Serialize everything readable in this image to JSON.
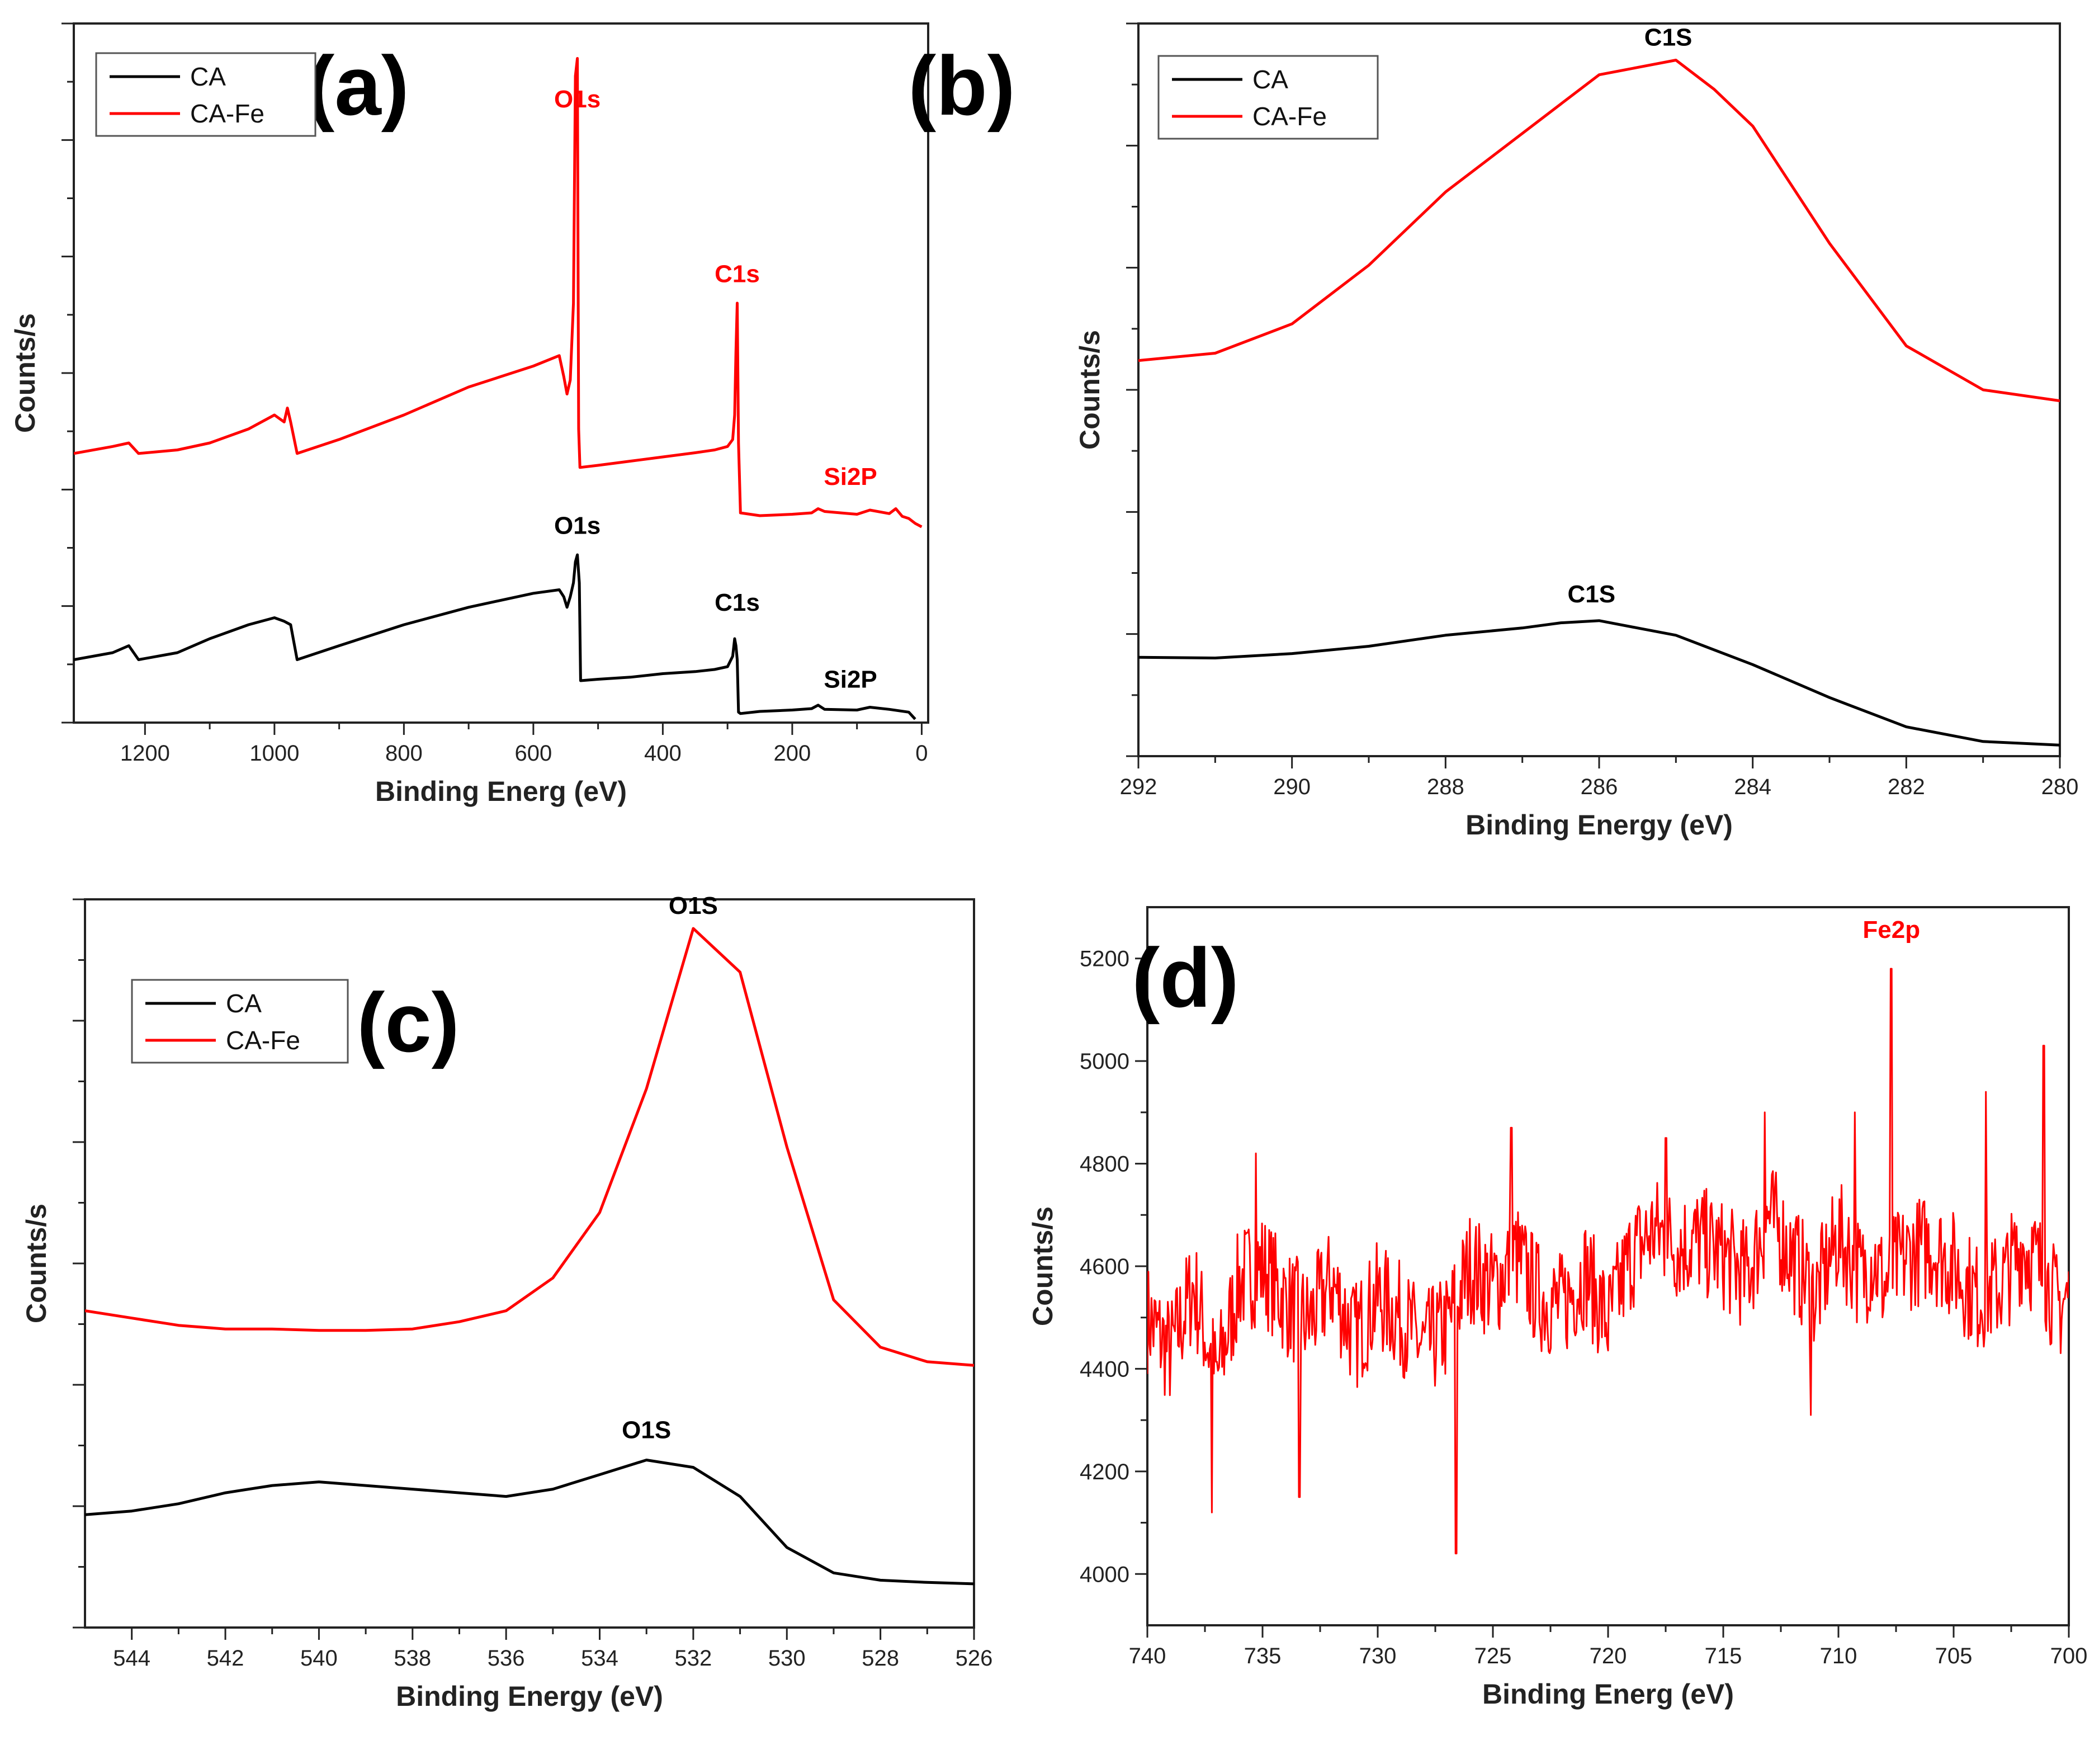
{
  "chart_data": [
    {
      "panel": "(a)",
      "type": "line",
      "xlabel": "Binding Energ (eV)",
      "ylabel": "Counts/s",
      "xlim": [
        1310,
        -10
      ],
      "ylim": [
        0,
        100
      ],
      "xticks": [
        1200,
        1000,
        800,
        600,
        400,
        200,
        0
      ],
      "yticks_labeled": false,
      "legend": "top-left",
      "series": [
        {
          "name": "CA",
          "color": "#000000",
          "x": [
            1310,
            1250,
            1225,
            1210,
            1150,
            1100,
            1040,
            1000,
            985,
            975,
            965,
            900,
            800,
            700,
            600,
            560,
            553,
            548,
            543,
            538,
            535,
            532,
            529,
            527,
            500,
            450,
            400,
            350,
            320,
            300,
            292,
            289,
            287,
            285,
            283,
            280,
            250,
            200,
            170,
            160,
            150,
            100,
            80,
            50,
            20,
            10
          ],
          "y": [
            9,
            10,
            11,
            9,
            10,
            12,
            14,
            15,
            14.5,
            14,
            9,
            11,
            14,
            16.5,
            18.5,
            19,
            18,
            16.5,
            18,
            20,
            23,
            24,
            20,
            6,
            6.2,
            6.5,
            7,
            7.3,
            7.6,
            8,
            9.5,
            12,
            11,
            9,
            1.5,
            1.3,
            1.6,
            1.8,
            2,
            2.5,
            1.9,
            1.8,
            2.2,
            1.9,
            1.5,
            0.5
          ]
        },
        {
          "name": "CA-Fe",
          "color": "#ff0000",
          "x": [
            1310,
            1250,
            1225,
            1210,
            1150,
            1100,
            1040,
            1000,
            985,
            980,
            975,
            965,
            900,
            800,
            700,
            600,
            560,
            553,
            548,
            543,
            538,
            535,
            532,
            530,
            528,
            500,
            450,
            400,
            350,
            320,
            300,
            292,
            289,
            287,
            285,
            283,
            280,
            250,
            200,
            170,
            160,
            150,
            100,
            80,
            50,
            40,
            30,
            20,
            10,
            0
          ],
          "y": [
            38.5,
            39.5,
            40,
            38.5,
            39,
            40,
            42,
            44,
            43,
            45,
            43,
            38.5,
            40.5,
            44,
            48,
            51,
            52.5,
            49.5,
            47,
            49,
            60,
            92.5,
            95,
            42,
            36.5,
            36.8,
            37.4,
            38,
            38.6,
            39,
            39.5,
            40.5,
            44,
            53,
            60,
            40,
            30,
            29.6,
            29.8,
            30,
            30.6,
            30.2,
            29.8,
            30.4,
            29.9,
            30.6,
            29.5,
            29.2,
            28.5,
            28
          ]
        }
      ],
      "annotations": [
        {
          "text": "O1s",
          "x": 532,
          "y": 88,
          "color": "#ff0000"
        },
        {
          "text": "C1s",
          "x": 285,
          "y": 63,
          "color": "#ff0000"
        },
        {
          "text": "Si2P",
          "x": 110,
          "y": 34,
          "color": "#ff0000"
        },
        {
          "text": "O1s",
          "x": 532,
          "y": 27,
          "color": "#000000"
        },
        {
          "text": "C1s",
          "x": 285,
          "y": 16,
          "color": "#000000"
        },
        {
          "text": "Si2P",
          "x": 110,
          "y": 5,
          "color": "#000000"
        }
      ]
    },
    {
      "panel": "(b)",
      "type": "line",
      "xlabel": "Binding Energy (eV)",
      "ylabel": "Counts/s",
      "xlim": [
        292,
        280
      ],
      "ylim": [
        0,
        100
      ],
      "xticks": [
        292,
        290,
        288,
        286,
        284,
        282,
        280
      ],
      "yticks_labeled": false,
      "legend": "top-left",
      "series": [
        {
          "name": "CA",
          "color": "#000000",
          "x": [
            292,
            291,
            290,
            289,
            288,
            287,
            286.5,
            286,
            285.5,
            285,
            284,
            283,
            282,
            281,
            280
          ],
          "y": [
            13.5,
            13.4,
            14,
            15,
            16.5,
            17.5,
            18.2,
            18.5,
            17.5,
            16.5,
            12.5,
            8,
            4,
            2,
            1.5
          ]
        },
        {
          "name": "CA-Fe",
          "color": "#ff0000",
          "x": [
            292,
            291,
            290,
            289,
            288,
            287,
            286.5,
            286,
            285.5,
            285,
            284.5,
            284,
            283,
            282,
            281,
            280
          ],
          "y": [
            54,
            55,
            59,
            67,
            77,
            85,
            89,
            93,
            94,
            95,
            91,
            86,
            70,
            56,
            50,
            48.5
          ]
        }
      ],
      "annotations": [
        {
          "text": "C1S",
          "x": 285.1,
          "y": 97,
          "color": "#000000"
        },
        {
          "text": "C1S",
          "x": 286.1,
          "y": 21,
          "color": "#000000"
        }
      ]
    },
    {
      "panel": "(c)",
      "type": "line",
      "xlabel": "Binding Energy (eV)",
      "ylabel": "Counts/s",
      "xlim": [
        545,
        526
      ],
      "ylim": [
        0,
        100
      ],
      "xticks": [
        544,
        542,
        540,
        538,
        536,
        534,
        532,
        530,
        528,
        526
      ],
      "yticks_labeled": false,
      "legend": "top-left",
      "series": [
        {
          "name": "CA",
          "color": "#000000",
          "x": [
            545,
            544,
            543,
            542,
            541,
            540,
            539,
            538,
            537,
            536,
            535,
            534,
            533,
            532,
            531,
            530,
            529,
            528,
            527,
            526
          ],
          "y": [
            15.5,
            16,
            17,
            18.5,
            19.5,
            20,
            19.5,
            19,
            18.5,
            18,
            19,
            21,
            23,
            22,
            18,
            11,
            7.5,
            6.5,
            6.2,
            6
          ]
        },
        {
          "name": "CA-Fe",
          "color": "#ff0000",
          "x": [
            545,
            544,
            543,
            542,
            541,
            540,
            539,
            538,
            537,
            536,
            535,
            534,
            533,
            532,
            531,
            530,
            529,
            528,
            527,
            526
          ],
          "y": [
            43.5,
            42.5,
            41.5,
            41,
            41,
            40.8,
            40.8,
            41,
            42,
            43.5,
            48,
            57,
            74,
            96,
            90,
            66,
            45,
            38.5,
            36.5,
            36
          ]
        }
      ],
      "annotations": [
        {
          "text": "O1S",
          "x": 532,
          "y": 98,
          "color": "#000000"
        },
        {
          "text": "O1S",
          "x": 533,
          "y": 26,
          "color": "#000000"
        }
      ]
    },
    {
      "panel": "(d)",
      "type": "line",
      "xlabel": "Binding Energ (eV)",
      "ylabel": "Counts/s",
      "xlim": [
        740,
        700
      ],
      "ylim": [
        3900,
        5300
      ],
      "xticks": [
        740,
        735,
        730,
        725,
        720,
        715,
        710,
        705,
        700
      ],
      "yticks": [
        4000,
        4200,
        4400,
        4600,
        4800,
        5000,
        5200
      ],
      "legend": "none",
      "series": [
        {
          "name": "",
          "color": "#ff0000",
          "x": [
            740,
            739,
            738,
            737,
            736,
            735,
            734,
            733,
            732,
            731,
            730,
            729,
            728,
            727,
            726,
            725,
            724,
            723,
            722,
            721,
            720,
            719,
            718,
            717,
            716,
            715,
            714,
            713,
            712,
            711,
            710,
            709,
            708.5,
            708,
            707.5,
            707,
            706,
            705,
            704,
            703,
            702,
            701,
            700.5,
            700
          ],
          "y": [
            4500,
            4430,
            4560,
            4380,
            4570,
            4600,
            4530,
            4490,
            4570,
            4460,
            4540,
            4500,
            4440,
            4480,
            4600,
            4560,
            4620,
            4540,
            4520,
            4590,
            4490,
            4620,
            4670,
            4640,
            4650,
            4620,
            4580,
            4700,
            4620,
            4540,
            4660,
            4580,
            4620,
            4560,
            4600,
            4620,
            4640,
            4600,
            4540,
            4560,
            4640,
            4580,
            4520,
            4540
          ]
        }
      ],
      "noise": {
        "amplitude": 110,
        "points": 900,
        "seed": 7
      },
      "spikes": [
        {
          "x": 737.2,
          "y": 4120
        },
        {
          "x": 735.3,
          "y": 4820
        },
        {
          "x": 733.4,
          "y": 4150
        },
        {
          "x": 726.6,
          "y": 4040
        },
        {
          "x": 724.2,
          "y": 4870
        },
        {
          "x": 717.5,
          "y": 4850
        },
        {
          "x": 713.2,
          "y": 4900
        },
        {
          "x": 709.3,
          "y": 4900
        },
        {
          "x": 707.7,
          "y": 5180
        },
        {
          "x": 703.6,
          "y": 4940
        },
        {
          "x": 701.1,
          "y": 5030
        },
        {
          "x": 711.2,
          "y": 4310
        }
      ],
      "annotations": [
        {
          "text": "Fe2p",
          "x": 707.7,
          "y": 5240,
          "color": "#ff0000"
        }
      ]
    }
  ]
}
